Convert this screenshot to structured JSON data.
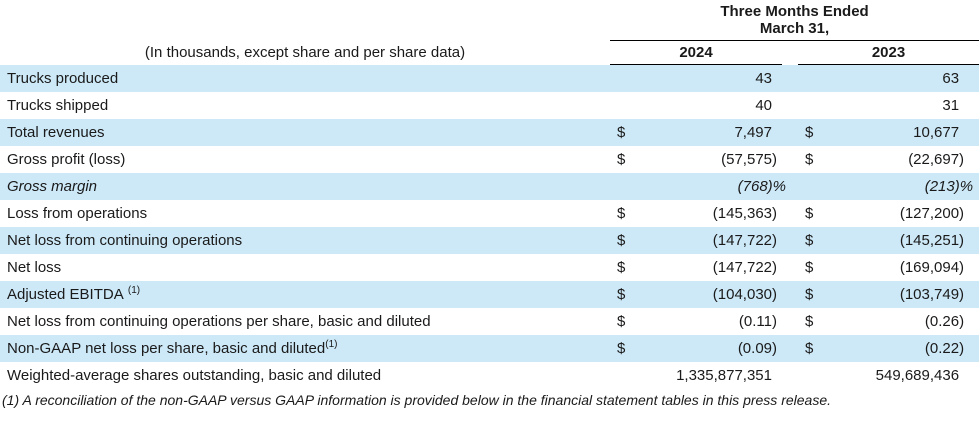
{
  "table": {
    "header": {
      "period_line1": "Three Months Ended",
      "period_line2": "March 31,",
      "units_note": "(In thousands, except share and per share data)",
      "columns": [
        "2024",
        "2023"
      ],
      "currency_symbol": "$"
    },
    "rows": [
      {
        "label": "Trucks produced",
        "sup": "",
        "sup_space": false,
        "dollar": false,
        "italic": false,
        "shaded": true,
        "values": [
          "43",
          "63"
        ]
      },
      {
        "label": "Trucks shipped",
        "sup": "",
        "sup_space": false,
        "dollar": false,
        "italic": false,
        "shaded": false,
        "values": [
          "40",
          "31"
        ]
      },
      {
        "label": "Total revenues",
        "sup": "",
        "sup_space": false,
        "dollar": true,
        "italic": false,
        "shaded": true,
        "values": [
          "7,497",
          "10,677"
        ]
      },
      {
        "label": "Gross profit (loss)",
        "sup": "",
        "sup_space": false,
        "dollar": true,
        "italic": false,
        "shaded": false,
        "values": [
          "(57,575)",
          "(22,697)"
        ]
      },
      {
        "label": "Gross margin",
        "sup": "",
        "sup_space": false,
        "dollar": false,
        "italic": true,
        "shaded": true,
        "values": [
          "(768)%",
          "(213)%"
        ]
      },
      {
        "label": "Loss from operations",
        "sup": "",
        "sup_space": false,
        "dollar": true,
        "italic": false,
        "shaded": false,
        "values": [
          "(145,363)",
          "(127,200)"
        ]
      },
      {
        "label": "Net loss from continuing operations",
        "sup": "",
        "sup_space": false,
        "dollar": true,
        "italic": false,
        "shaded": true,
        "values": [
          "(147,722)",
          "(145,251)"
        ]
      },
      {
        "label": "Net loss",
        "sup": "",
        "sup_space": false,
        "dollar": true,
        "italic": false,
        "shaded": false,
        "values": [
          "(147,722)",
          "(169,094)"
        ]
      },
      {
        "label": "Adjusted EBITDA",
        "sup": "(1)",
        "sup_space": true,
        "dollar": true,
        "italic": false,
        "shaded": true,
        "values": [
          "(104,030)",
          "(103,749)"
        ]
      },
      {
        "label": "Net loss from continuing operations per share, basic and diluted",
        "sup": "",
        "sup_space": false,
        "dollar": true,
        "italic": false,
        "shaded": false,
        "values": [
          "(0.11)",
          "(0.26)"
        ]
      },
      {
        "label": "Non-GAAP net loss per share, basic and diluted",
        "sup": "(1)",
        "sup_space": false,
        "dollar": true,
        "italic": false,
        "shaded": true,
        "values": [
          "(0.09)",
          "(0.22)"
        ]
      },
      {
        "label": "Weighted-average shares outstanding, basic and diluted",
        "sup": "",
        "sup_space": false,
        "dollar": false,
        "italic": false,
        "shaded": false,
        "values": [
          "1,335,877,351",
          "549,689,436"
        ]
      }
    ],
    "footnote": "(1) A reconciliation of the non-GAAP versus GAAP information is provided below in the financial statement tables in this press release."
  },
  "colors": {
    "row_shade": "#cde9f8",
    "rule": "#000000",
    "text": "#1a1a1a"
  }
}
